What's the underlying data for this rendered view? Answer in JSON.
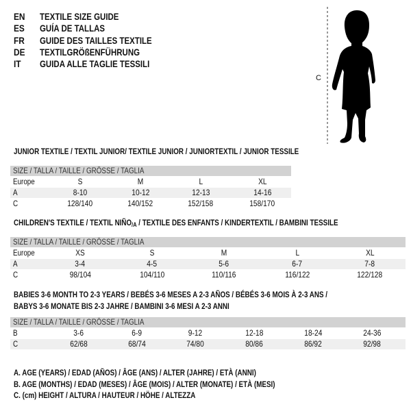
{
  "header": {
    "languages": [
      {
        "code": "EN",
        "title": "TEXTILE SIZE GUIDE"
      },
      {
        "code": "ES",
        "title": "GUÍA DE TALLAS"
      },
      {
        "code": "FR",
        "title": "GUIDE DES TAILLES TEXTILE"
      },
      {
        "code": "DE",
        "title": "TEXTILGRÖßENFÜHRUNG"
      },
      {
        "code": "IT",
        "title": "GUIDA ALLE TAGLIE TESSILI"
      }
    ]
  },
  "figure": {
    "measure_label": "C",
    "icon": "child-silhouette"
  },
  "size_header": "SIZE / TALLA / TAILLE / GRÖSSE / TAGLIA",
  "junior": {
    "title": "JUNIOR TEXTILE / TEXTIL JUNIOR/ TEXTILE JUNIOR / JUNIORTEXTIL / JUNIOR TESSILE",
    "rows": [
      {
        "label": "Europe",
        "values": [
          "S",
          "M",
          "L",
          "XL"
        ]
      },
      {
        "label": "A",
        "values": [
          "8-10",
          "10-12",
          "12-13",
          "14-16"
        ]
      },
      {
        "label": "C",
        "values": [
          "128/140",
          "140/152",
          "152/158",
          "158/170"
        ]
      }
    ]
  },
  "children": {
    "title_pre": "CHILDREN'S TEXTILE / TEXTIL NIÑO",
    "title_sub": "/A",
    "title_post": " / TEXTILE DES ENFANTS / KINDERTEXTIL / BAMBINI TESSILE",
    "rows": [
      {
        "label": "Europe",
        "values": [
          "XS",
          "S",
          "M",
          "L",
          "XL"
        ]
      },
      {
        "label": "A",
        "values": [
          "3-4",
          "4-5",
          "5-6",
          "6-7",
          "7-8"
        ]
      },
      {
        "label": "C",
        "values": [
          "98/104",
          "104/110",
          "110/116",
          "116/122",
          "122/128"
        ]
      }
    ]
  },
  "babies": {
    "title_line1": "BABIES 3-6 MONTH TO 2-3 YEARS / BEBÉS 3-6 MESES A 2-3 AÑOS / BÉBÉS 3-6 MOIS À 2-3 ANS /",
    "title_line2": "BABYS 3-6 MONATE BIS 2-3 JAHRE / BAMBINI 3-6 MESI A 2-3 ANNI",
    "rows": [
      {
        "label": "B",
        "values": [
          "3-6",
          "6-9",
          "9-12",
          "12-18",
          "18-24",
          "24-36"
        ]
      },
      {
        "label": "C",
        "values": [
          "62/68",
          "68/74",
          "74/80",
          "80/86",
          "86/92",
          "92/98"
        ]
      }
    ]
  },
  "legend": [
    "A. AGE (YEARS) / EDAD (AÑOS) / ÂGE (ANS) / ALTER (JAHRE) / ETÀ (ANNI)",
    "B. AGE (MONTHS) / EDAD (MESES) / ÂGE (MOIS) / ALTER (MONATE) / ETÀ (MESI)",
    "C. (cm) HEIGHT / ALTURA / HAUTEUR / HÖHE / ALTEZZA"
  ],
  "colors": {
    "header_row": "#d2d2d2",
    "shaded_row": "#efefef",
    "text": "#111111"
  }
}
